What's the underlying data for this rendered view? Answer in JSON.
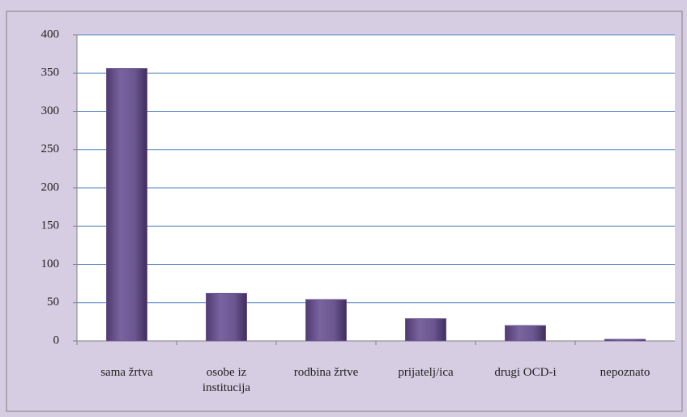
{
  "chart_data": {
    "type": "bar",
    "categories": [
      "sama žrtva",
      "osobe iz\ninstitucija",
      "rodbina žrtve",
      "prijatelj/ica",
      "drugi OCD-i",
      "nepoznato"
    ],
    "values": [
      356,
      62,
      54,
      29,
      20,
      2
    ],
    "color": "#6b5690",
    "ylim": [
      0,
      400
    ],
    "yticks": [
      0,
      50,
      100,
      150,
      200,
      250,
      300,
      350,
      400
    ],
    "grid": true
  }
}
